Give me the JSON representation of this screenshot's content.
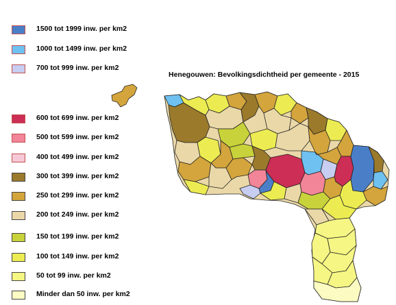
{
  "title": "Henegouwen: Bevolkingsdichtheid per gemeente - 2015",
  "legend": [
    {
      "label": "1500 tot 1999 inw. per km2",
      "color": "#4a7fc8"
    },
    {
      "label": "1000 tot 1499 inw. per km2",
      "color": "#6ec1f0"
    },
    {
      "label": "700 tot 999 inw. per km2",
      "color": "#c8cdf2"
    },
    {
      "label": "600 tot 699 inw. per km2",
      "color": "#cc2e55"
    },
    {
      "label": "500 tot 599 inw. per km2",
      "color": "#f28598"
    },
    {
      "label": "400 tot 499 inw. per km2",
      "color": "#f6c8d6"
    },
    {
      "label": "300 tot 399 inw. per km2",
      "color": "#9b7a2c"
    },
    {
      "label": "250 tot 299 inw. per km2",
      "color": "#d4a53c"
    },
    {
      "label": "200 tot 249 inw. per km2",
      "color": "#ead8a8"
    },
    {
      "label": "150 tot 199 inw. per km2",
      "color": "#c8d23a"
    },
    {
      "label": "100 tot 149 inw. per km2",
      "color": "#ecec52"
    },
    {
      "label": "50 tot 99 inw. per km2",
      "color": "#f6f684"
    },
    {
      "label": "Minder dan 50 inw. per km2",
      "color": "#fbfbc2"
    }
  ]
}
